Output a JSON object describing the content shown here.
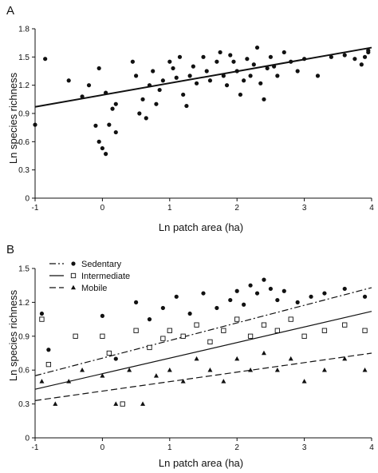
{
  "chart_data": [
    {
      "panel": "A",
      "type": "scatter",
      "xlabel": "Ln patch area (ha)",
      "ylabel": "Ln species richness",
      "xlim": [
        -1,
        4
      ],
      "ylim": [
        0,
        1.8
      ],
      "xticks": [
        "-1",
        "0",
        "1",
        "2",
        "3",
        "4"
      ],
      "yticks": [
        "0",
        "0.3",
        "0.6",
        "0.9",
        "1.2",
        "1.5",
        "1.8"
      ],
      "grid": false,
      "series": [
        {
          "marker": "filled-circle",
          "points": [
            [
              -1.0,
              0.78
            ],
            [
              -0.85,
              1.48
            ],
            [
              -0.5,
              1.25
            ],
            [
              -0.3,
              1.08
            ],
            [
              -0.2,
              1.2
            ],
            [
              -0.05,
              1.38
            ],
            [
              0.05,
              1.12
            ],
            [
              0.1,
              0.78
            ],
            [
              0.15,
              0.95
            ],
            [
              0.2,
              1.0
            ],
            [
              -0.1,
              0.77
            ],
            [
              -0.05,
              0.6
            ],
            [
              0.0,
              0.53
            ],
            [
              0.05,
              0.47
            ],
            [
              0.2,
              0.7
            ],
            [
              0.45,
              1.45
            ],
            [
              0.5,
              1.3
            ],
            [
              0.55,
              0.9
            ],
            [
              0.6,
              1.05
            ],
            [
              0.65,
              0.85
            ],
            [
              0.7,
              1.2
            ],
            [
              0.75,
              1.35
            ],
            [
              0.8,
              1.0
            ],
            [
              0.85,
              1.15
            ],
            [
              0.9,
              1.25
            ],
            [
              1.0,
              1.45
            ],
            [
              1.05,
              1.38
            ],
            [
              1.1,
              1.28
            ],
            [
              1.15,
              1.5
            ],
            [
              1.2,
              1.1
            ],
            [
              1.25,
              0.98
            ],
            [
              1.3,
              1.3
            ],
            [
              1.35,
              1.4
            ],
            [
              1.4,
              1.22
            ],
            [
              1.5,
              1.5
            ],
            [
              1.55,
              1.35
            ],
            [
              1.6,
              1.25
            ],
            [
              1.7,
              1.45
            ],
            [
              1.75,
              1.55
            ],
            [
              1.8,
              1.3
            ],
            [
              1.85,
              1.2
            ],
            [
              1.9,
              1.52
            ],
            [
              1.95,
              1.45
            ],
            [
              2.0,
              1.35
            ],
            [
              2.05,
              1.1
            ],
            [
              2.1,
              1.25
            ],
            [
              2.15,
              1.48
            ],
            [
              2.2,
              1.3
            ],
            [
              2.25,
              1.42
            ],
            [
              2.3,
              1.6
            ],
            [
              2.35,
              1.22
            ],
            [
              2.4,
              1.05
            ],
            [
              2.45,
              1.38
            ],
            [
              2.5,
              1.5
            ],
            [
              2.55,
              1.4
            ],
            [
              2.6,
              1.3
            ],
            [
              2.7,
              1.55
            ],
            [
              2.8,
              1.45
            ],
            [
              2.9,
              1.35
            ],
            [
              3.0,
              1.48
            ],
            [
              3.2,
              1.3
            ],
            [
              3.4,
              1.5
            ],
            [
              3.6,
              1.52
            ],
            [
              3.75,
              1.48
            ],
            [
              3.85,
              1.42
            ],
            [
              3.9,
              1.5
            ],
            [
              3.95,
              1.55
            ],
            [
              3.95,
              1.57
            ]
          ],
          "fit": {
            "x": [
              -1,
              4
            ],
            "y": [
              0.97,
              1.6
            ]
          }
        }
      ]
    },
    {
      "panel": "B",
      "type": "scatter",
      "xlabel": "Ln patch area (ha)",
      "ylabel": "Ln species richness",
      "xlim": [
        -1,
        4
      ],
      "ylim": [
        0,
        1.5
      ],
      "xticks": [
        "-1",
        "0",
        "1",
        "2",
        "3",
        "4"
      ],
      "yticks": [
        "0",
        "0.3",
        "0.6",
        "0.9",
        "1.2",
        "1.5"
      ],
      "grid": false,
      "legend_position": "top-left",
      "series": [
        {
          "name": "Sedentary",
          "marker": "filled-circle",
          "line_style": "dash-dot",
          "points": [
            [
              -0.9,
              1.1
            ],
            [
              -0.8,
              0.78
            ],
            [
              0.0,
              1.08
            ],
            [
              0.2,
              0.7
            ],
            [
              0.5,
              1.2
            ],
            [
              0.7,
              1.05
            ],
            [
              0.9,
              1.15
            ],
            [
              1.1,
              1.25
            ],
            [
              1.3,
              1.1
            ],
            [
              1.5,
              1.28
            ],
            [
              1.7,
              1.15
            ],
            [
              1.9,
              1.22
            ],
            [
              2.0,
              1.3
            ],
            [
              2.1,
              1.18
            ],
            [
              2.2,
              1.35
            ],
            [
              2.3,
              1.28
            ],
            [
              2.4,
              1.4
            ],
            [
              2.5,
              1.32
            ],
            [
              2.6,
              1.22
            ],
            [
              2.7,
              1.3
            ],
            [
              2.9,
              1.2
            ],
            [
              3.1,
              1.25
            ],
            [
              3.3,
              1.28
            ],
            [
              3.6,
              1.32
            ],
            [
              3.9,
              1.25
            ]
          ],
          "fit": {
            "x": [
              -1,
              4
            ],
            "y": [
              0.55,
              1.33
            ]
          }
        },
        {
          "name": "Intermediate",
          "marker": "open-square",
          "line_style": "solid",
          "points": [
            [
              -0.9,
              1.05
            ],
            [
              -0.8,
              0.65
            ],
            [
              -0.4,
              0.9
            ],
            [
              0.0,
              0.9
            ],
            [
              0.1,
              0.75
            ],
            [
              0.3,
              0.3
            ],
            [
              0.5,
              0.95
            ],
            [
              0.7,
              0.8
            ],
            [
              0.9,
              0.88
            ],
            [
              1.0,
              0.95
            ],
            [
              1.2,
              0.9
            ],
            [
              1.4,
              1.0
            ],
            [
              1.6,
              0.85
            ],
            [
              1.8,
              0.95
            ],
            [
              2.0,
              1.05
            ],
            [
              2.2,
              0.9
            ],
            [
              2.4,
              1.0
            ],
            [
              2.6,
              0.95
            ],
            [
              2.8,
              1.05
            ],
            [
              3.0,
              0.9
            ],
            [
              3.3,
              0.95
            ],
            [
              3.6,
              1.0
            ],
            [
              3.9,
              0.95
            ]
          ],
          "fit": {
            "x": [
              -1,
              4
            ],
            "y": [
              0.43,
              1.12
            ]
          }
        },
        {
          "name": "Mobile",
          "marker": "filled-triangle",
          "line_style": "dashed",
          "points": [
            [
              -0.9,
              0.5
            ],
            [
              -0.7,
              0.3
            ],
            [
              -0.5,
              0.5
            ],
            [
              -0.3,
              0.6
            ],
            [
              0.0,
              0.55
            ],
            [
              0.2,
              0.3
            ],
            [
              0.4,
              0.6
            ],
            [
              0.6,
              0.3
            ],
            [
              0.8,
              0.55
            ],
            [
              1.0,
              0.6
            ],
            [
              1.2,
              0.5
            ],
            [
              1.4,
              0.7
            ],
            [
              1.6,
              0.6
            ],
            [
              1.8,
              0.5
            ],
            [
              2.0,
              0.7
            ],
            [
              2.2,
              0.6
            ],
            [
              2.4,
              0.75
            ],
            [
              2.6,
              0.6
            ],
            [
              2.8,
              0.7
            ],
            [
              3.0,
              0.5
            ],
            [
              3.3,
              0.6
            ],
            [
              3.6,
              0.7
            ],
            [
              3.9,
              0.6
            ]
          ],
          "fit": {
            "x": [
              -1,
              4
            ],
            "y": [
              0.33,
              0.75
            ]
          }
        }
      ]
    }
  ]
}
